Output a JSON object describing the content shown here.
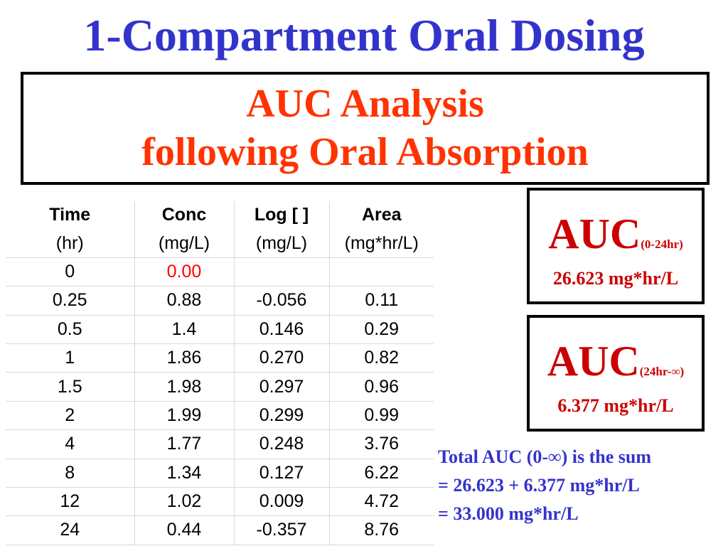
{
  "title": "1-Compartment Oral Dosing",
  "subtitle": {
    "line1": "AUC Analysis",
    "line2": "following Oral Absorption"
  },
  "table": {
    "headers": [
      "Time",
      "Conc",
      "Log [ ]",
      "Area"
    ],
    "units": [
      "(hr)",
      "(mg/L)",
      "(mg/L)",
      "(mg*hr/L)"
    ],
    "rows": [
      [
        "0",
        "0.00",
        "",
        ""
      ],
      [
        "0.25",
        "0.88",
        "-0.056",
        "0.11"
      ],
      [
        "0.5",
        "1.4",
        "0.146",
        "0.29"
      ],
      [
        "1",
        "1.86",
        "0.270",
        "0.82"
      ],
      [
        "1.5",
        "1.98",
        "0.297",
        "0.96"
      ],
      [
        "2",
        "1.99",
        "0.299",
        "0.99"
      ],
      [
        "4",
        "1.77",
        "0.248",
        "3.76"
      ],
      [
        "8",
        "1.34",
        "0.127",
        "6.22"
      ],
      [
        "12",
        "1.02",
        "0.009",
        "4.72"
      ],
      [
        "24",
        "0.44",
        "-0.357",
        "8.76"
      ]
    ]
  },
  "auc_boxes": [
    {
      "label": "AUC",
      "range": "(0-24hr)",
      "value": "26.623 mg*hr/L"
    },
    {
      "label": "AUC",
      "range": "(24hr-∞)",
      "value": "6.377 mg*hr/L"
    }
  ],
  "summary": {
    "line1": "Total AUC (0-∞) is the sum",
    "line2": "= 26.623 + 6.377 mg*hr/L",
    "line3": "= 33.000 mg*hr/L"
  },
  "colors": {
    "title": "#3333cc",
    "subtitle": "#ff3300",
    "auc": "#cc0000",
    "highlight": "#ff0000"
  }
}
